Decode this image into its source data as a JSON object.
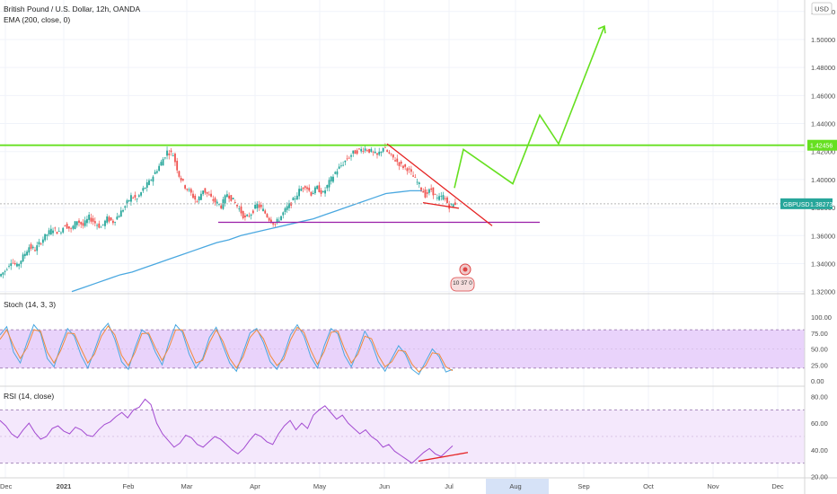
{
  "header": {
    "title": "British Pound / U.S. Dollar, 12h, OANDA",
    "indicator": "EMA (200, close, 0)",
    "currency_button": "USD"
  },
  "colors": {
    "green": "#66e020",
    "blue": "#4aa8e0",
    "red": "#e52222",
    "purple": "#9a1fa8",
    "stoch_fill": "#e9d3fb",
    "rsi_fill": "#f4e8fc",
    "candle_up": "#26a69a",
    "candle_down": "#ef5350"
  },
  "symbol_badge": {
    "symbol": "GBPUSD",
    "price": "1.38273"
  },
  "resistance_badge": "1.42456",
  "event_label": "10 37 0",
  "chart_data": [
    {
      "type": "candlestick",
      "title": "British Pound / U.S. Dollar, 12h, OANDA",
      "x_ticks": [
        "Dec",
        "2021",
        "Feb",
        "Mar",
        "Apr",
        "May",
        "Jun",
        "Jul",
        "Aug",
        "Sep",
        "Oct",
        "Nov",
        "Dec"
      ],
      "highlighted_x_tick": "Aug",
      "y_ticks": [
        "1.52000",
        "1.50000",
        "1.48000",
        "1.46000",
        "1.44000",
        "1.42000",
        "1.40000",
        "1.38000",
        "1.36000",
        "1.34000",
        "1.32000"
      ],
      "ylim": [
        1.3185,
        1.5282
      ],
      "close_series": [
        1.335,
        1.342,
        1.338,
        1.345,
        1.352,
        1.35,
        1.356,
        1.361,
        1.365,
        1.362,
        1.368,
        1.364,
        1.371,
        1.367,
        1.373,
        1.369,
        1.366,
        1.372,
        1.37,
        1.375,
        1.381,
        1.388,
        1.386,
        1.393,
        1.398,
        1.405,
        1.412,
        1.42,
        1.418,
        1.403,
        1.395,
        1.39,
        1.384,
        1.393,
        1.388,
        1.384,
        1.381,
        1.39,
        1.385,
        1.379,
        1.372,
        1.376,
        1.382,
        1.378,
        1.372,
        1.368,
        1.374,
        1.38,
        1.385,
        1.392,
        1.396,
        1.39,
        1.394,
        1.39,
        1.398,
        1.405,
        1.41,
        1.415,
        1.419,
        1.421,
        1.422,
        1.42,
        1.417,
        1.423,
        1.418,
        1.414,
        1.41,
        1.408,
        1.402,
        1.396,
        1.389,
        1.393,
        1.386,
        1.388,
        1.381,
        1.383
      ],
      "ema_series": [
        1.32,
        1.323,
        1.326,
        1.329,
        1.332,
        1.334,
        1.337,
        1.34,
        1.343,
        1.346,
        1.349,
        1.352,
        1.355,
        1.357,
        1.36,
        1.362,
        1.364,
        1.366,
        1.368,
        1.37,
        1.372,
        1.375,
        1.378,
        1.381,
        1.384,
        1.387,
        1.39,
        1.391,
        1.392,
        1.392
      ],
      "horizontal_lines": [
        {
          "label": "resistance",
          "value": 1.4245,
          "color": "#66e020"
        },
        {
          "label": "support",
          "value": 1.3695,
          "color": "#9a1fa8"
        },
        {
          "label": "last_price",
          "value": 1.38273,
          "color": "#b8b8b8"
        }
      ],
      "projection_path": [
        1.394,
        1.4215,
        1.397,
        1.446,
        1.4255,
        1.5095
      ],
      "wedge_upper": [
        1.4255,
        1.367
      ],
      "wedge_lower": [
        1.3835,
        1.3795
      ]
    },
    {
      "type": "line",
      "title": "Stoch (14, 3, 3)",
      "y_ticks": [
        "100.00",
        "75.00",
        "50.00",
        "25.00",
        "0.00"
      ],
      "ylim": [
        0,
        100
      ],
      "band": [
        20,
        80
      ],
      "series": [
        {
          "values": [
            72,
            85,
            45,
            28,
            60,
            88,
            75,
            35,
            22,
            55,
            82,
            70,
            40,
            20,
            48,
            78,
            90,
            65,
            30,
            18,
            52,
            80,
            72,
            45,
            25,
            60,
            88,
            76,
            42,
            20,
            35,
            68,
            84,
            55,
            28,
            15,
            45,
            75,
            82,
            60,
            30,
            18,
            40,
            72,
            88,
            70,
            38,
            20,
            55,
            82,
            74,
            40,
            22,
            48,
            78,
            60,
            30,
            15,
            35,
            55,
            42,
            18,
            10,
            30,
            50,
            38,
            14,
            18
          ]
        },
        {
          "values": [
            65,
            80,
            55,
            35,
            52,
            80,
            78,
            45,
            28,
            48,
            75,
            74,
            50,
            28,
            42,
            70,
            86,
            72,
            40,
            24,
            45,
            74,
            75,
            52,
            32,
            52,
            80,
            80,
            52,
            28,
            32,
            60,
            80,
            62,
            35,
            20,
            38,
            68,
            80,
            66,
            40,
            24,
            34,
            64,
            84,
            76,
            48,
            26,
            46,
            76,
            78,
            50,
            28,
            42,
            70,
            66,
            40,
            22,
            30,
            48,
            46,
            26,
            14,
            24,
            44,
            42,
            22,
            16
          ]
        }
      ]
    },
    {
      "type": "line",
      "title": "RSI (14, close)",
      "y_ticks": [
        "80.00",
        "60.00",
        "40.00",
        "20.00"
      ],
      "ylim": [
        19,
        83
      ],
      "band": [
        30,
        70
      ],
      "series": [
        {
          "values": [
            62,
            58,
            52,
            49,
            55,
            60,
            53,
            48,
            50,
            56,
            58,
            54,
            52,
            57,
            55,
            51,
            50,
            55,
            59,
            61,
            65,
            68,
            64,
            70,
            72,
            78,
            74,
            60,
            52,
            47,
            42,
            45,
            51,
            49,
            44,
            42,
            46,
            50,
            48,
            44,
            40,
            37,
            41,
            47,
            52,
            50,
            46,
            44,
            52,
            58,
            62,
            55,
            60,
            56,
            66,
            70,
            73,
            68,
            63,
            66,
            60,
            56,
            52,
            55,
            50,
            47,
            42,
            44,
            39,
            36,
            33,
            30,
            34,
            38,
            41,
            37,
            35,
            39,
            43
          ]
        }
      ],
      "trend_line": [
        31.5,
        38
      ]
    }
  ]
}
